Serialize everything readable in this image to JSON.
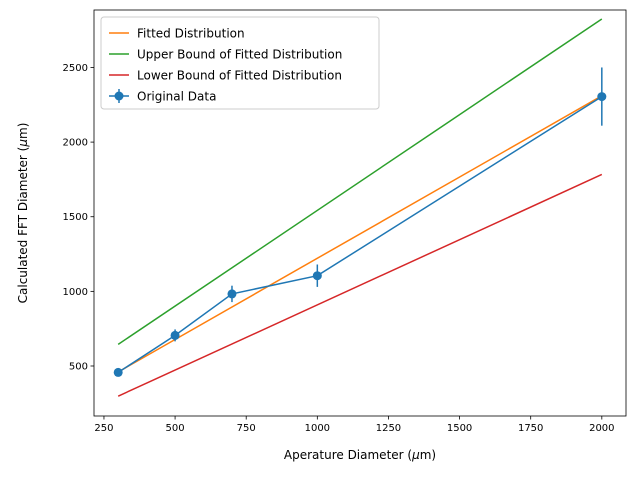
{
  "chart_data": {
    "type": "line",
    "xlabel_prefix": "Aperature Diameter (",
    "xlabel_unit": "μ",
    "xlabel_suffix": "m)",
    "ylabel_prefix": "Calculated FFT Diameter (",
    "ylabel_unit": "μ",
    "ylabel_suffix": "m)",
    "xlim": [
      215,
      2085
    ],
    "ylim": [
      165,
      2885
    ],
    "xticks": [
      250,
      500,
      750,
      1000,
      1250,
      1500,
      1750,
      2000
    ],
    "yticks": [
      500,
      1000,
      1500,
      2000,
      2500
    ],
    "grid": false,
    "legend_position": "top-left",
    "series": [
      {
        "name": "Fitted Distribution",
        "color": "#ff7f0e",
        "x": [
          300,
          2000
        ],
        "y": [
          460,
          2310
        ]
      },
      {
        "name": "Upper Bound of Fitted Distribution",
        "color": "#2ca02c",
        "x": [
          300,
          2000
        ],
        "y": [
          645,
          2825
        ]
      },
      {
        "name": "Lower Bound of Fitted Distribution",
        "color": "#d62728",
        "x": [
          300,
          2000
        ],
        "y": [
          298,
          1783
        ]
      },
      {
        "name": "Original Data",
        "color": "#1f77b4",
        "markers": true,
        "x": [
          300,
          500,
          700,
          1000,
          2000
        ],
        "y": [
          457,
          705,
          983,
          1105,
          2305
        ],
        "yerr": [
          22,
          40,
          55,
          75,
          195
        ]
      }
    ]
  }
}
